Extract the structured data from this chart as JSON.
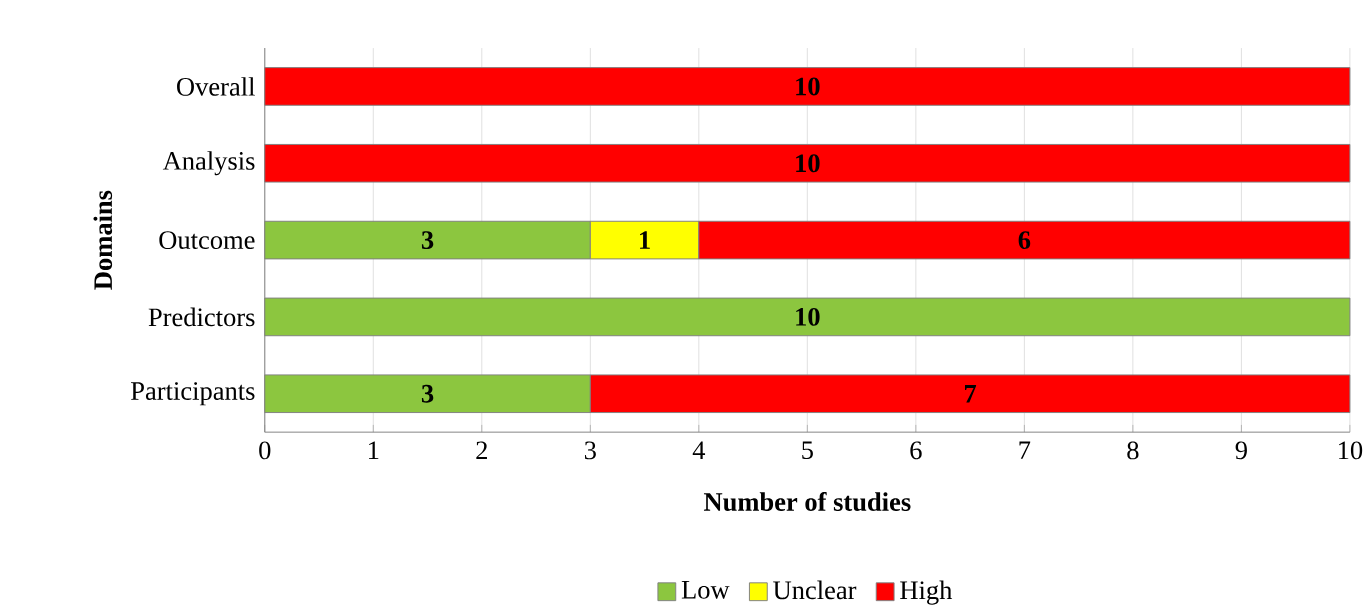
{
  "chart_data": {
    "type": "bar",
    "orientation": "horizontal",
    "stacked": true,
    "categories": [
      "Overall",
      "Analysis",
      "Outcome",
      "Predictors",
      "Participants"
    ],
    "series": [
      {
        "name": "Low",
        "color": "#8cc63f",
        "values": [
          null,
          null,
          3,
          10,
          3
        ]
      },
      {
        "name": "Unclear",
        "color": "#ffff00",
        "values": [
          null,
          null,
          1,
          null,
          null
        ]
      },
      {
        "name": "High",
        "color": "#ff0000",
        "values": [
          10,
          10,
          6,
          null,
          7
        ]
      }
    ],
    "xlim": [
      0,
      10
    ],
    "xticks": [
      0,
      1,
      2,
      3,
      4,
      5,
      6,
      7,
      8,
      9,
      10
    ],
    "xlabel": "Number of studies",
    "ylabel": "Domains",
    "grid": "x",
    "legend": "bottom",
    "data_labels": true
  }
}
